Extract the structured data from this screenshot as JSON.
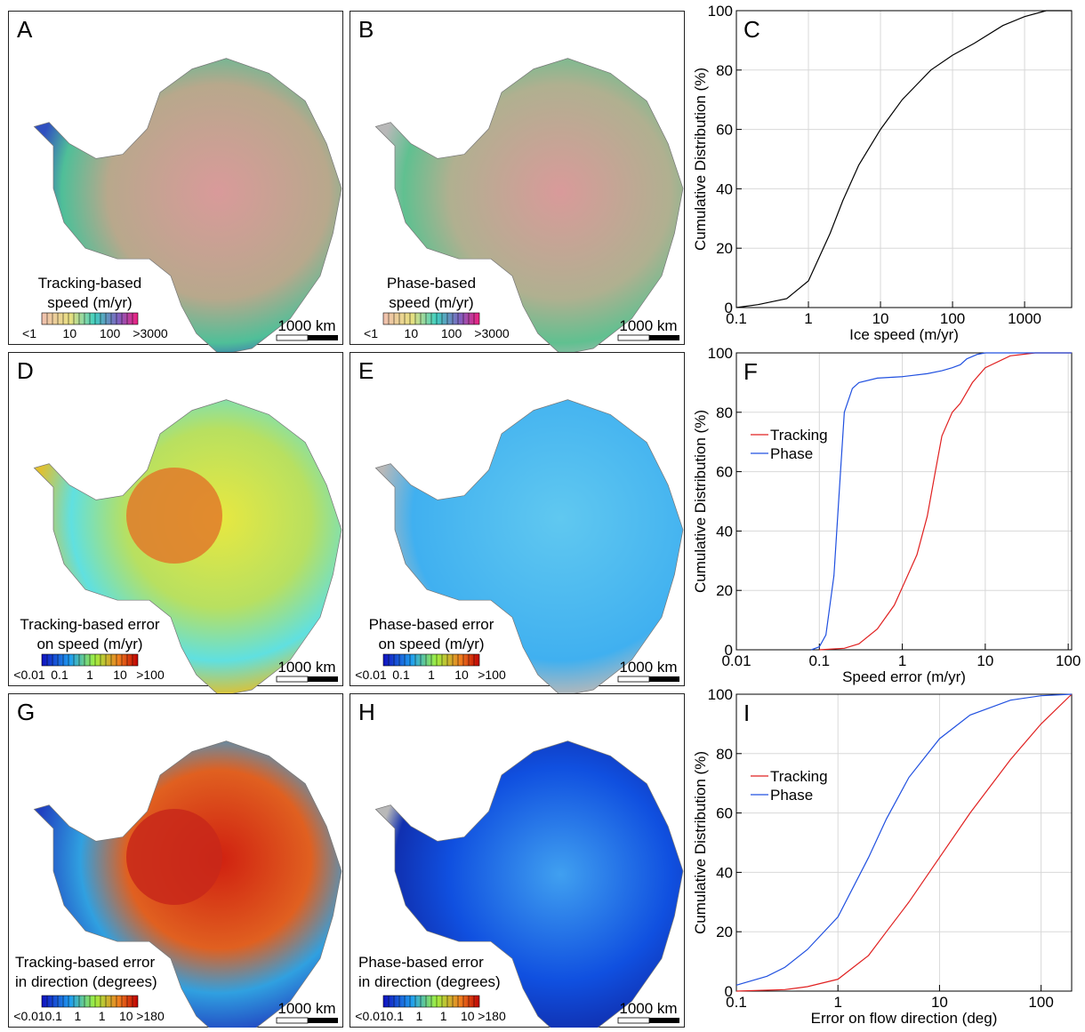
{
  "maps": [
    {
      "letter": "A",
      "label": [
        "Tracking-based",
        "speed (m/yr)"
      ],
      "colorbar_labels": [
        "<1",
        "10",
        "100",
        ">3000"
      ],
      "scale": "1000 km"
    },
    {
      "letter": "B",
      "label": [
        "Phase-based",
        "speed (m/yr)"
      ],
      "colorbar_labels": [
        "<1",
        "10",
        "100",
        ">3000"
      ],
      "scale": "1000 km"
    },
    {
      "letter": "D",
      "label": [
        "Tracking-based error",
        "on speed (m/yr)"
      ],
      "colorbar_labels": [
        "<0.01",
        "0.1",
        "1",
        "10",
        ">100"
      ],
      "scale": "1000 km"
    },
    {
      "letter": "E",
      "label": [
        "Phase-based error",
        "on speed (m/yr)"
      ],
      "colorbar_labels": [
        "<0.01",
        "0.1",
        "1",
        "10",
        ">100"
      ],
      "scale": "1000 km"
    },
    {
      "letter": "G",
      "label": [
        "Tracking-based error",
        "in direction (degrees)"
      ],
      "colorbar_labels": [
        "<0.01",
        "0.1",
        "1",
        "1",
        "10",
        ">180"
      ],
      "scale": "1000 km"
    },
    {
      "letter": "H",
      "label": [
        "Phase-based error",
        "in direction (degrees)"
      ],
      "colorbar_labels": [
        "<0.01",
        "0.1",
        "1",
        "1",
        "10",
        ">180"
      ],
      "scale": "1000 km"
    }
  ],
  "chart_data": [
    {
      "type": "line",
      "panel_label": "C",
      "x_label": "Ice speed (m/yr)",
      "y_label": "Cumulative Distribution (%)",
      "x_scale": "log",
      "xlim": [
        0.1,
        4500
      ],
      "xticks": [
        0.1,
        1,
        10,
        100,
        1000
      ],
      "ylim": [
        0,
        100
      ],
      "yticks": [
        0,
        20,
        40,
        60,
        80,
        100
      ],
      "grid": true,
      "x": [
        0.1,
        0.2,
        0.5,
        1,
        2,
        3,
        5,
        10,
        20,
        50,
        100,
        200,
        500,
        1000,
        2000,
        4500
      ],
      "values": [
        0,
        1,
        3,
        9,
        25,
        36,
        48,
        60,
        70,
        80,
        85,
        89,
        95,
        98,
        100,
        100
      ],
      "color": "#000000"
    },
    {
      "type": "line",
      "panel_label": "F",
      "x_label": "Speed error (m/yr)",
      "y_label": "Cumulative Distribution (%)",
      "x_scale": "log",
      "xlim": [
        0.01,
        110
      ],
      "xticks": [
        0.01,
        0.1,
        1,
        10,
        100
      ],
      "ylim": [
        0,
        100
      ],
      "yticks": [
        0,
        20,
        40,
        60,
        80,
        100
      ],
      "grid": true,
      "legend": "upper left",
      "series": [
        {
          "name": "Tracking",
          "color": "#e02020",
          "x": [
            0.1,
            0.2,
            0.3,
            0.5,
            0.8,
            1,
            1.5,
            2,
            2.5,
            3,
            4,
            5,
            7,
            10,
            20,
            40,
            110
          ],
          "values": [
            0,
            0.5,
            2,
            7,
            15,
            21,
            32,
            45,
            60,
            72,
            80,
            83,
            90,
            95,
            99,
            100,
            100
          ]
        },
        {
          "name": "Phase",
          "color": "#2050e0",
          "x": [
            0.08,
            0.1,
            0.12,
            0.15,
            0.18,
            0.2,
            0.25,
            0.3,
            0.5,
            1,
            2,
            3,
            4,
            5,
            6,
            8,
            10,
            110
          ],
          "values": [
            0,
            1,
            5,
            25,
            60,
            80,
            88,
            90,
            91.5,
            92,
            93,
            94,
            95,
            96,
            98,
            99.5,
            100,
            100
          ]
        }
      ]
    },
    {
      "type": "line",
      "panel_label": "I",
      "x_label": "Error on flow direction (deg)",
      "y_label": "Cumulative Distribution (%)",
      "x_scale": "log",
      "xlim": [
        0.1,
        200
      ],
      "xticks": [
        0.1,
        1,
        10,
        100
      ],
      "ylim": [
        0,
        100
      ],
      "yticks": [
        0,
        20,
        40,
        60,
        80,
        100
      ],
      "grid": true,
      "legend": "upper left",
      "series": [
        {
          "name": "Tracking",
          "color": "#e02020",
          "x": [
            0.1,
            0.3,
            0.5,
            1,
            2,
            3,
            5,
            10,
            20,
            50,
            100,
            200
          ],
          "values": [
            0,
            0.5,
            1.5,
            4,
            12,
            20,
            30,
            45,
            60,
            78,
            90,
            100
          ]
        },
        {
          "name": "Phase",
          "color": "#2050e0",
          "x": [
            0.1,
            0.2,
            0.3,
            0.5,
            1,
            2,
            3,
            5,
            10,
            20,
            50,
            100,
            200
          ],
          "values": [
            2,
            5,
            8,
            14,
            25,
            45,
            58,
            72,
            85,
            93,
            98,
            99.5,
            100
          ]
        }
      ]
    }
  ]
}
